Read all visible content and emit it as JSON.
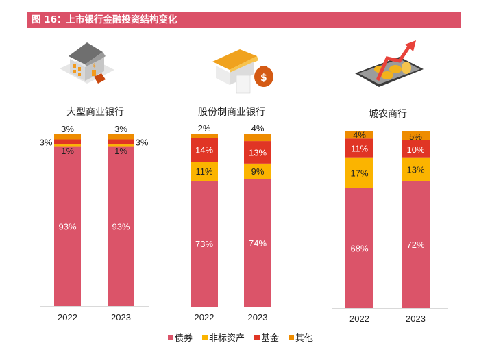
{
  "title": "图 16：上市银行金融投资结构变化",
  "colors": {
    "债券": "#db5469",
    "非标资产": "#fbb400",
    "基金": "#e03525",
    "其他": "#ee8c00",
    "title_bg": "#db5168"
  },
  "legend": [
    {
      "label": "债券",
      "color": "#db5469"
    },
    {
      "label": "非标资产",
      "color": "#fbb400"
    },
    {
      "label": "基金",
      "color": "#e03525"
    },
    {
      "label": "其他",
      "color": "#ee8c00"
    }
  ],
  "panels": [
    {
      "title": "大型商业银行",
      "icon": "bank-building-icon"
    },
    {
      "title": "股份制商业银行",
      "icon": "bank-moneybag-icon"
    },
    {
      "title": "城农商行",
      "icon": "tablet-coins-growth-icon"
    }
  ],
  "chart_data": [
    {
      "type": "bar",
      "stacked": true,
      "title": "大型商业银行",
      "categories": [
        "2022",
        "2023"
      ],
      "series": [
        {
          "name": "债券",
          "values": [
            93,
            93
          ],
          "labels": [
            "93%",
            "93%"
          ]
        },
        {
          "name": "非标资产",
          "values": [
            1,
            1
          ],
          "labels": [
            "1%",
            "1%"
          ]
        },
        {
          "name": "基金",
          "values": [
            3,
            3
          ],
          "labels": [
            "3%",
            "3%"
          ]
        },
        {
          "name": "其他",
          "values": [
            3,
            3
          ],
          "labels": [
            "3%",
            "3%"
          ]
        }
      ],
      "ylim": [
        0,
        100
      ]
    },
    {
      "type": "bar",
      "stacked": true,
      "title": "股份制商业银行",
      "categories": [
        "2022",
        "2023"
      ],
      "series": [
        {
          "name": "债券",
          "values": [
            73,
            74
          ],
          "labels": [
            "73%",
            "74%"
          ]
        },
        {
          "name": "非标资产",
          "values": [
            11,
            9
          ],
          "labels": [
            "11%",
            "9%"
          ]
        },
        {
          "name": "基金",
          "values": [
            14,
            13
          ],
          "labels": [
            "14%",
            "13%"
          ]
        },
        {
          "name": "其他",
          "values": [
            2,
            4
          ],
          "labels": [
            "2%",
            "4%"
          ]
        }
      ],
      "ylim": [
        0,
        100
      ]
    },
    {
      "type": "bar",
      "stacked": true,
      "title": "城农商行",
      "categories": [
        "2022",
        "2023"
      ],
      "series": [
        {
          "name": "债券",
          "values": [
            68,
            72
          ],
          "labels": [
            "68%",
            "72%"
          ]
        },
        {
          "name": "非标资产",
          "values": [
            17,
            13
          ],
          "labels": [
            "17%",
            "13%"
          ]
        },
        {
          "name": "基金",
          "values": [
            11,
            10
          ],
          "labels": [
            "11%",
            "10%"
          ]
        },
        {
          "name": "其他",
          "values": [
            4,
            5
          ],
          "labels": [
            "4%",
            "5%"
          ]
        }
      ],
      "ylim": [
        0,
        100
      ]
    }
  ]
}
